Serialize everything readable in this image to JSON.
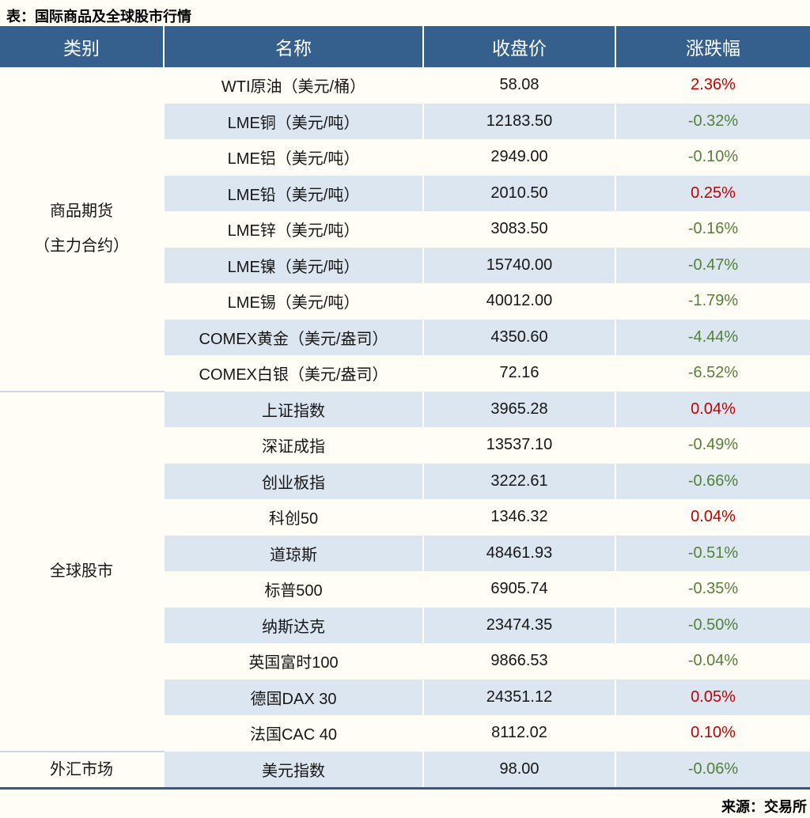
{
  "title": "表：国际商品及全球股市行情",
  "source": "来源：交易所",
  "colors": {
    "positive_red": "#c00000",
    "negative_green": "#538135",
    "header_bg": "#35608e",
    "row_stripe": "#dce6f1",
    "bottom_rule": "#325a88"
  },
  "table": {
    "headers": [
      "类别",
      "名称",
      "收盘价",
      "涨跌幅"
    ],
    "sections": [
      {
        "category": "商品期货\n（主力合约）",
        "rows": [
          {
            "name": "WTI原油（美元/桶）",
            "close": "58.08",
            "change": "2.36%",
            "direction": "up"
          },
          {
            "name": "LME铜（美元/吨）",
            "close": "12183.50",
            "change": "-0.32%",
            "direction": "down"
          },
          {
            "name": "LME铝（美元/吨）",
            "close": "2949.00",
            "change": "-0.10%",
            "direction": "down"
          },
          {
            "name": "LME铅（美元/吨）",
            "close": "2010.50",
            "change": "0.25%",
            "direction": "up"
          },
          {
            "name": "LME锌（美元/吨）",
            "close": "3083.50",
            "change": "-0.16%",
            "direction": "down"
          },
          {
            "name": "LME镍（美元/吨）",
            "close": "15740.00",
            "change": "-0.47%",
            "direction": "down"
          },
          {
            "name": "LME锡（美元/吨）",
            "close": "40012.00",
            "change": "-1.79%",
            "direction": "down"
          },
          {
            "name": "COMEX黄金（美元/盎司）",
            "close": "4350.60",
            "change": "-4.44%",
            "direction": "down"
          },
          {
            "name": "COMEX白银（美元/盎司）",
            "close": "72.16",
            "change": "-6.52%",
            "direction": "down"
          }
        ]
      },
      {
        "category": "全球股市",
        "rows": [
          {
            "name": "上证指数",
            "close": "3965.28",
            "change": "0.04%",
            "direction": "up"
          },
          {
            "name": "深证成指",
            "close": "13537.10",
            "change": "-0.49%",
            "direction": "down"
          },
          {
            "name": "创业板指",
            "close": "3222.61",
            "change": "-0.66%",
            "direction": "down"
          },
          {
            "name": "科创50",
            "close": "1346.32",
            "change": "0.04%",
            "direction": "up"
          },
          {
            "name": "道琼斯",
            "close": "48461.93",
            "change": "-0.51%",
            "direction": "down"
          },
          {
            "name": "标普500",
            "close": "6905.74",
            "change": "-0.35%",
            "direction": "down"
          },
          {
            "name": "纳斯达克",
            "close": "23474.35",
            "change": "-0.50%",
            "direction": "down"
          },
          {
            "name": "英国富时100",
            "close": "9866.53",
            "change": "-0.04%",
            "direction": "down"
          },
          {
            "name": "德国DAX 30",
            "close": "24351.12",
            "change": "0.05%",
            "direction": "up"
          },
          {
            "name": "法国CAC 40",
            "close": "8112.02",
            "change": "0.10%",
            "direction": "up"
          }
        ]
      },
      {
        "category": "外汇市场",
        "rows": [
          {
            "name": "美元指数",
            "close": "98.00",
            "change": "-0.06%",
            "direction": "down"
          }
        ]
      }
    ]
  }
}
